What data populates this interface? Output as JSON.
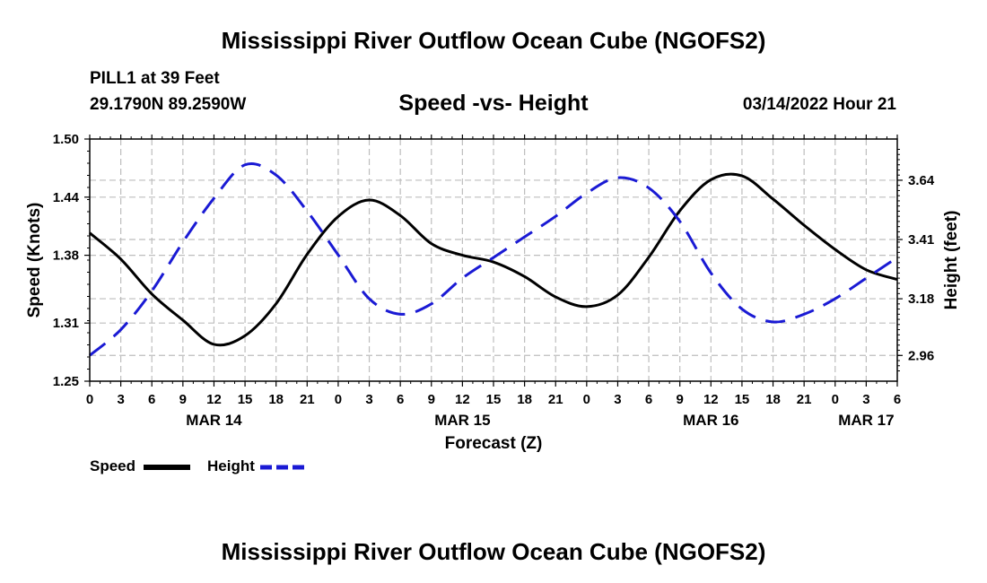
{
  "page": {
    "title": "Mississippi River Outflow Ocean Cube (NGOFS2)",
    "footer_title": "Mississippi River Outflow Ocean Cube (NGOFS2)"
  },
  "station": {
    "name": "PILL1 at 39 Feet",
    "coords": "29.1790N  89.2590W",
    "timestamp": "03/14/2022 Hour 21"
  },
  "chart_data": {
    "type": "line",
    "title": "Speed -vs- Height",
    "xlabel": "Forecast (Z)",
    "ylabel": "Speed (Knots)",
    "y2label": "Height (feet)",
    "x_range_hours": [
      0,
      78
    ],
    "x_ticks": [
      {
        "hour": 0,
        "label": "0"
      },
      {
        "hour": 3,
        "label": "3"
      },
      {
        "hour": 6,
        "label": "6"
      },
      {
        "hour": 9,
        "label": "9"
      },
      {
        "hour": 12,
        "label": "12"
      },
      {
        "hour": 15,
        "label": "15"
      },
      {
        "hour": 18,
        "label": "18"
      },
      {
        "hour": 21,
        "label": "21"
      },
      {
        "hour": 24,
        "label": "0"
      },
      {
        "hour": 27,
        "label": "3"
      },
      {
        "hour": 30,
        "label": "6"
      },
      {
        "hour": 33,
        "label": "9"
      },
      {
        "hour": 36,
        "label": "12"
      },
      {
        "hour": 39,
        "label": "15"
      },
      {
        "hour": 42,
        "label": "18"
      },
      {
        "hour": 45,
        "label": "21"
      },
      {
        "hour": 48,
        "label": "0"
      },
      {
        "hour": 51,
        "label": "3"
      },
      {
        "hour": 54,
        "label": "6"
      },
      {
        "hour": 57,
        "label": "9"
      },
      {
        "hour": 60,
        "label": "12"
      },
      {
        "hour": 63,
        "label": "15"
      },
      {
        "hour": 66,
        "label": "18"
      },
      {
        "hour": 69,
        "label": "21"
      },
      {
        "hour": 72,
        "label": "0"
      },
      {
        "hour": 75,
        "label": "3"
      },
      {
        "hour": 78,
        "label": "6"
      }
    ],
    "date_labels": [
      {
        "hour": 12,
        "label": "MAR 14"
      },
      {
        "hour": 36,
        "label": "MAR 15"
      },
      {
        "hour": 60,
        "label": "MAR 16"
      },
      {
        "hour": 75,
        "label": "MAR 17"
      }
    ],
    "ylim": [
      1.25,
      1.5
    ],
    "y_ticks": [
      1.25,
      1.31,
      1.38,
      1.44,
      1.5
    ],
    "y_tick_labels": [
      "1.25",
      "1.31",
      "1.38",
      "1.44",
      "1.50"
    ],
    "y2lim": [
      2.86,
      3.8
    ],
    "y2_ticks": [
      2.96,
      3.18,
      3.41,
      3.64
    ],
    "y2_tick_labels": [
      "2.96",
      "3.18",
      "3.41",
      "3.64"
    ],
    "grid": true,
    "series": [
      {
        "name": "Speed",
        "axis": "left",
        "color": "#000000",
        "dash": "solid",
        "points": [
          [
            0,
            1.403
          ],
          [
            3,
            1.376
          ],
          [
            6,
            1.34
          ],
          [
            9,
            1.313
          ],
          [
            12,
            1.288
          ],
          [
            15,
            1.297
          ],
          [
            18,
            1.33
          ],
          [
            21,
            1.381
          ],
          [
            24,
            1.42
          ],
          [
            27,
            1.437
          ],
          [
            30,
            1.421
          ],
          [
            33,
            1.392
          ],
          [
            36,
            1.38
          ],
          [
            39,
            1.373
          ],
          [
            42,
            1.358
          ],
          [
            45,
            1.337
          ],
          [
            48,
            1.327
          ],
          [
            51,
            1.339
          ],
          [
            54,
            1.378
          ],
          [
            57,
            1.426
          ],
          [
            60,
            1.458
          ],
          [
            63,
            1.462
          ],
          [
            66,
            1.438
          ],
          [
            69,
            1.411
          ],
          [
            72,
            1.386
          ],
          [
            75,
            1.365
          ],
          [
            78,
            1.355
          ]
        ]
      },
      {
        "name": "Height",
        "axis": "right",
        "color": "#1a1ad4",
        "dash": "dashed",
        "points": [
          [
            0,
            2.96
          ],
          [
            3,
            3.06
          ],
          [
            6,
            3.21
          ],
          [
            9,
            3.4
          ],
          [
            12,
            3.57
          ],
          [
            15,
            3.7
          ],
          [
            18,
            3.66
          ],
          [
            21,
            3.52
          ],
          [
            24,
            3.35
          ],
          [
            27,
            3.18
          ],
          [
            30,
            3.12
          ],
          [
            33,
            3.16
          ],
          [
            36,
            3.26
          ],
          [
            39,
            3.34
          ],
          [
            42,
            3.42
          ],
          [
            45,
            3.5
          ],
          [
            48,
            3.59
          ],
          [
            51,
            3.65
          ],
          [
            54,
            3.61
          ],
          [
            57,
            3.48
          ],
          [
            60,
            3.28
          ],
          [
            63,
            3.14
          ],
          [
            66,
            3.09
          ],
          [
            69,
            3.12
          ],
          [
            72,
            3.18
          ],
          [
            75,
            3.26
          ],
          [
            78,
            3.34
          ]
        ]
      }
    ]
  },
  "legend": {
    "speed_label": "Speed",
    "height_label": "Height",
    "speed_color": "#000000",
    "height_color": "#1a1ad4"
  }
}
